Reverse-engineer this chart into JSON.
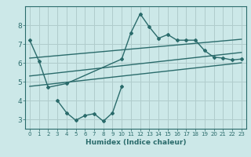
{
  "title": "",
  "xlabel": "Humidex (Indice chaleur)",
  "bg_color": "#cce8e8",
  "grid_color": "#b0cccc",
  "line_color": "#2a6b6b",
  "xlim": [
    -0.5,
    23.5
  ],
  "ylim": [
    2.5,
    9.0
  ],
  "yticks": [
    3,
    4,
    5,
    6,
    7,
    8
  ],
  "xticks": [
    0,
    1,
    2,
    3,
    4,
    5,
    6,
    7,
    8,
    9,
    10,
    11,
    12,
    13,
    14,
    15,
    16,
    17,
    18,
    19,
    20,
    21,
    22,
    23
  ],
  "series": [
    {
      "x": [
        0,
        1,
        2,
        4,
        10,
        11,
        12,
        13,
        14,
        15,
        16,
        17,
        18,
        19,
        20,
        21,
        22,
        23
      ],
      "y": [
        7.2,
        6.1,
        4.7,
        4.9,
        6.2,
        7.6,
        8.6,
        7.9,
        7.3,
        7.5,
        7.2,
        7.2,
        7.2,
        6.65,
        6.3,
        6.25,
        6.15,
        6.2
      ],
      "marker": true
    },
    {
      "x": [
        3,
        4,
        5,
        6,
        7,
        8,
        9,
        10
      ],
      "y": [
        4.0,
        3.35,
        2.95,
        3.2,
        3.3,
        2.9,
        3.35,
        4.75
      ],
      "marker": true
    },
    {
      "x": [
        0,
        23
      ],
      "y": [
        5.3,
        6.55
      ],
      "marker": false
    },
    {
      "x": [
        0,
        23
      ],
      "y": [
        6.25,
        7.25
      ],
      "marker": false
    },
    {
      "x": [
        0,
        23
      ],
      "y": [
        4.75,
        6.0
      ],
      "marker": false
    }
  ]
}
